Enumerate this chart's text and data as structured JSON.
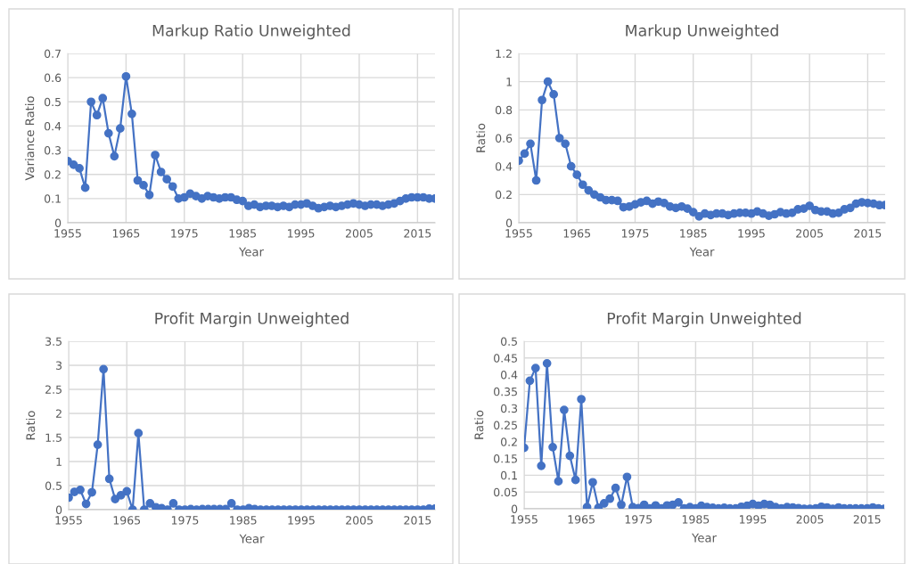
{
  "chart_data": [
    {
      "type": "line",
      "title": "Markup Ratio Unweighted",
      "xlabel": "Year",
      "ylabel": "Variance Ratio",
      "xlim": [
        1955,
        2018
      ],
      "xticks": [
        1955,
        1965,
        1975,
        1985,
        1995,
        2005,
        2015
      ],
      "ylim": [
        0,
        0.7
      ],
      "yticks": [
        0,
        0.1,
        0.2,
        0.3,
        0.4,
        0.5,
        0.6,
        0.7
      ],
      "grid": true,
      "marker": "circle",
      "line_style": "solid",
      "legend": false,
      "x": [
        1955,
        1956,
        1957,
        1958,
        1959,
        1960,
        1961,
        1962,
        1963,
        1964,
        1965,
        1966,
        1967,
        1968,
        1969,
        1970,
        1971,
        1972,
        1973,
        1974,
        1975,
        1976,
        1977,
        1978,
        1979,
        1980,
        1981,
        1982,
        1983,
        1984,
        1985,
        1986,
        1987,
        1988,
        1989,
        1990,
        1991,
        1992,
        1993,
        1994,
        1995,
        1996,
        1997,
        1998,
        1999,
        2000,
        2001,
        2002,
        2003,
        2004,
        2005,
        2006,
        2007,
        2008,
        2009,
        2010,
        2011,
        2012,
        2013,
        2014,
        2015,
        2016,
        2017,
        2018
      ],
      "series": [
        {
          "color": "#4472c4",
          "values": [
            0.255,
            0.24,
            0.225,
            0.145,
            0.5,
            0.445,
            0.515,
            0.37,
            0.275,
            0.39,
            0.605,
            0.45,
            0.175,
            0.155,
            0.115,
            0.28,
            0.21,
            0.18,
            0.15,
            0.1,
            0.105,
            0.12,
            0.11,
            0.1,
            0.11,
            0.105,
            0.1,
            0.105,
            0.105,
            0.095,
            0.09,
            0.07,
            0.075,
            0.065,
            0.07,
            0.07,
            0.065,
            0.07,
            0.065,
            0.075,
            0.075,
            0.08,
            0.07,
            0.06,
            0.065,
            0.07,
            0.065,
            0.07,
            0.075,
            0.08,
            0.075,
            0.07,
            0.075,
            0.075,
            0.07,
            0.075,
            0.08,
            0.09,
            0.1,
            0.105,
            0.105,
            0.105,
            0.1,
            0.1
          ]
        }
      ]
    },
    {
      "type": "line",
      "title": "Markup Unweighted",
      "xlabel": "Year",
      "ylabel": "Ratio",
      "xlim": [
        1955,
        2018
      ],
      "xticks": [
        1955,
        1965,
        1975,
        1985,
        1995,
        2005,
        2015
      ],
      "ylim": [
        0,
        1.2
      ],
      "yticks": [
        0,
        0.2,
        0.4,
        0.6,
        0.8,
        1,
        1.2
      ],
      "grid": true,
      "marker": "circle",
      "line_style": "solid",
      "legend": false,
      "x": [
        1955,
        1956,
        1957,
        1958,
        1959,
        1960,
        1961,
        1962,
        1963,
        1964,
        1965,
        1966,
        1967,
        1968,
        1969,
        1970,
        1971,
        1972,
        1973,
        1974,
        1975,
        1976,
        1977,
        1978,
        1979,
        1980,
        1981,
        1982,
        1983,
        1984,
        1985,
        1986,
        1987,
        1988,
        1989,
        1990,
        1991,
        1992,
        1993,
        1994,
        1995,
        1996,
        1997,
        1998,
        1999,
        2000,
        2001,
        2002,
        2003,
        2004,
        2005,
        2006,
        2007,
        2008,
        2009,
        2010,
        2011,
        2012,
        2013,
        2014,
        2015,
        2016,
        2017,
        2018
      ],
      "series": [
        {
          "color": "#4472c4",
          "values": [
            0.44,
            0.49,
            0.56,
            0.3,
            0.87,
            1.0,
            0.91,
            0.6,
            0.56,
            0.4,
            0.34,
            0.27,
            0.23,
            0.2,
            0.18,
            0.16,
            0.16,
            0.155,
            0.11,
            0.115,
            0.13,
            0.145,
            0.155,
            0.135,
            0.15,
            0.14,
            0.115,
            0.105,
            0.115,
            0.1,
            0.075,
            0.045,
            0.065,
            0.055,
            0.065,
            0.065,
            0.055,
            0.065,
            0.07,
            0.07,
            0.065,
            0.08,
            0.065,
            0.05,
            0.06,
            0.075,
            0.065,
            0.07,
            0.095,
            0.1,
            0.12,
            0.09,
            0.08,
            0.08,
            0.065,
            0.07,
            0.095,
            0.105,
            0.135,
            0.145,
            0.14,
            0.135,
            0.125,
            0.125
          ]
        }
      ]
    },
    {
      "type": "line",
      "title": "Profit Margin Unweighted",
      "xlabel": "Year",
      "ylabel": "Ratio",
      "xlim": [
        1955,
        2018
      ],
      "xticks": [
        1955,
        1965,
        1975,
        1985,
        1995,
        2005,
        2015
      ],
      "ylim": [
        0,
        3.5
      ],
      "yticks": [
        0,
        0.5,
        1,
        1.5,
        2,
        2.5,
        3,
        3.5
      ],
      "grid": true,
      "marker": "circle",
      "line_style": "solid",
      "legend": false,
      "x": [
        1955,
        1956,
        1957,
        1958,
        1959,
        1960,
        1961,
        1962,
        1963,
        1964,
        1965,
        1966,
        1967,
        1968,
        1969,
        1970,
        1971,
        1972,
        1973,
        1974,
        1975,
        1976,
        1977,
        1978,
        1979,
        1980,
        1981,
        1982,
        1983,
        1984,
        1985,
        1986,
        1987,
        1988,
        1989,
        1990,
        1991,
        1992,
        1993,
        1994,
        1995,
        1996,
        1997,
        1998,
        1999,
        2000,
        2001,
        2002,
        2003,
        2004,
        2005,
        2006,
        2007,
        2008,
        2009,
        2010,
        2011,
        2012,
        2013,
        2014,
        2015,
        2016,
        2017,
        2018
      ],
      "series": [
        {
          "color": "#4472c4",
          "values": [
            0.25,
            0.37,
            0.41,
            0.12,
            0.36,
            1.35,
            2.92,
            0.64,
            0.22,
            0.3,
            0.38,
            0.0,
            1.59,
            0.0,
            0.13,
            0.05,
            0.03,
            0.0,
            0.13,
            0.0,
            0.0,
            0.01,
            0.0,
            0.01,
            0.01,
            0.01,
            0.01,
            0.01,
            0.13,
            0.0,
            0.0,
            0.03,
            0.01,
            0.0,
            0.0,
            0.0,
            0.0,
            0.0,
            0.0,
            0.0,
            0.0,
            0.0,
            0.0,
            0.0,
            0.0,
            0.0,
            0.0,
            0.0,
            0.0,
            0.0,
            0.0,
            0.0,
            0.0,
            0.0,
            0.0,
            0.0,
            0.0,
            0.0,
            0.0,
            0.0,
            0.0,
            0.0,
            0.02,
            0.02
          ]
        }
      ]
    },
    {
      "type": "line",
      "title": "Profit Margin Unweighted",
      "xlabel": "Year",
      "ylabel": "Ratio",
      "xlim": [
        1955,
        2018
      ],
      "xticks": [
        1955,
        1965,
        1975,
        1985,
        1995,
        2005,
        2015
      ],
      "ylim": [
        0,
        0.5
      ],
      "yticks": [
        0,
        0.05,
        0.1,
        0.15,
        0.2,
        0.25,
        0.3,
        0.35,
        0.4,
        0.45,
        0.5
      ],
      "grid": true,
      "marker": "circle",
      "line_style": "solid",
      "legend": false,
      "x": [
        1955,
        1956,
        1957,
        1958,
        1959,
        1960,
        1961,
        1962,
        1963,
        1964,
        1965,
        1966,
        1967,
        1968,
        1969,
        1970,
        1971,
        1972,
        1973,
        1974,
        1975,
        1976,
        1977,
        1978,
        1979,
        1980,
        1981,
        1982,
        1983,
        1984,
        1985,
        1986,
        1987,
        1988,
        1989,
        1990,
        1991,
        1992,
        1993,
        1994,
        1995,
        1996,
        1997,
        1998,
        1999,
        2000,
        2001,
        2002,
        2003,
        2004,
        2005,
        2006,
        2007,
        2008,
        2009,
        2010,
        2011,
        2012,
        2013,
        2014,
        2015,
        2016,
        2017,
        2018
      ],
      "series": [
        {
          "color": "#4472c4",
          "values": [
            0.182,
            0.382,
            0.42,
            0.128,
            0.434,
            0.184,
            0.082,
            0.295,
            0.158,
            0.086,
            0.327,
            0.005,
            0.079,
            0.003,
            0.016,
            0.03,
            0.062,
            0.012,
            0.095,
            0.005,
            0.002,
            0.012,
            0.001,
            0.01,
            0.001,
            0.01,
            0.012,
            0.019,
            0.001,
            0.005,
            0.001,
            0.009,
            0.005,
            0.003,
            0.001,
            0.003,
            0.001,
            0.001,
            0.006,
            0.009,
            0.014,
            0.009,
            0.014,
            0.012,
            0.005,
            0.001,
            0.005,
            0.004,
            0.002,
            0.0,
            0.0,
            0.001,
            0.006,
            0.004,
            0.0,
            0.004,
            0.001,
            0.001,
            0.001,
            0.001,
            0.001,
            0.004,
            0.001,
            0.0
          ]
        }
      ]
    }
  ]
}
